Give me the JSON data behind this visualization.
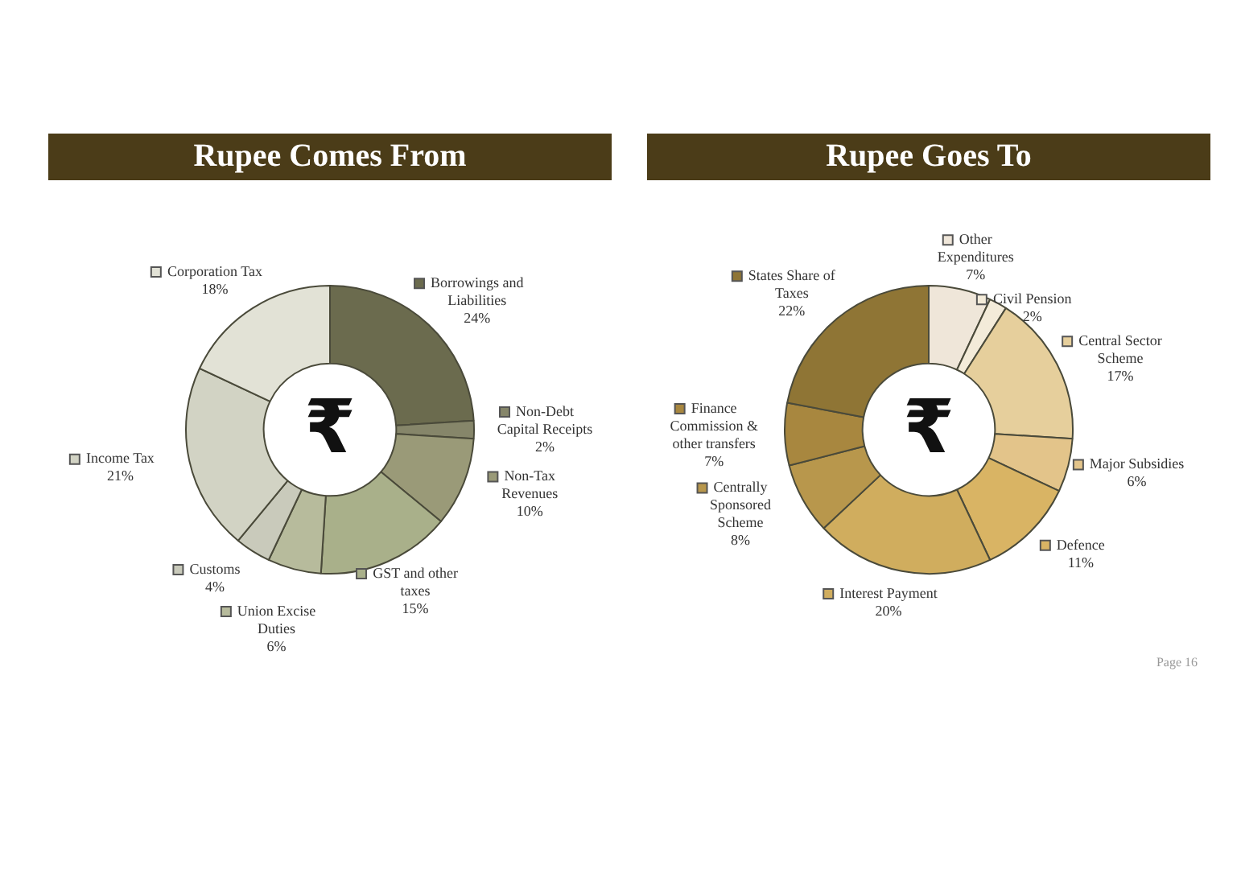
{
  "chart_data": [
    {
      "type": "donut",
      "title": "Rupee Comes From",
      "categories": [
        "Borrowings and Liabilities",
        "Non-Debt Capital Receipts",
        "Non-Tax Revenues",
        "GST and other taxes",
        "Union Excise Duties",
        "Customs",
        "Income Tax",
        "Corporation Tax"
      ],
      "values": [
        24,
        2,
        10,
        15,
        6,
        4,
        21,
        18
      ],
      "value_labels": [
        "24%",
        "2%",
        "10%",
        "15%",
        "6%",
        "4%",
        "21%",
        "18%"
      ],
      "colors": [
        "#6b6b4e",
        "#86866a",
        "#9a9a78",
        "#a9b08a",
        "#b7bb9c",
        "#c9cabb",
        "#d2d3c4",
        "#e2e2d6"
      ],
      "legend": "right",
      "annotations": [
        "₹"
      ]
    },
    {
      "type": "donut",
      "title": "Rupee Goes To",
      "categories": [
        "Other Expenditures",
        "Civil Pension",
        "Central Sector Scheme",
        "Major Subsidies",
        "Defence",
        "Interest Payment",
        "Centrally Sponsored Scheme",
        "Finance Commission & other transfers",
        "States Share of Taxes"
      ],
      "values": [
        7,
        2,
        17,
        6,
        11,
        20,
        8,
        7,
        22
      ],
      "value_labels": [
        "7%",
        "2%",
        "17%",
        "6%",
        "11%",
        "20%",
        "8%",
        "7%",
        "22%"
      ],
      "colors": [
        "#efe6d9",
        "#f3ebd9",
        "#e6cf9c",
        "#e3c48a",
        "#d9b464",
        "#d0ad5e",
        "#b8974c",
        "#a8873f",
        "#8f7535"
      ],
      "legend": "right",
      "annotations": [
        "₹",
        "Page 16"
      ]
    }
  ]
}
